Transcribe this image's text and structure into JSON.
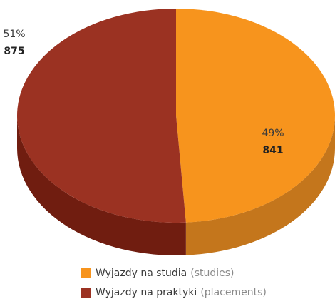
{
  "chart_data": {
    "type": "pie",
    "categories": [
      "Wyjazdy na studia",
      "Wyjazdy na praktyki"
    ],
    "category_notes": [
      "(studies)",
      "(placements)"
    ],
    "values": [
      841,
      875
    ],
    "percent_labels": [
      "49%",
      "51%"
    ],
    "colors": [
      "#f7941d",
      "#9b3222"
    ],
    "side_colors": [
      "#c4761c",
      "#701d10"
    ],
    "start_angle": "top",
    "direction": "clockwise"
  }
}
